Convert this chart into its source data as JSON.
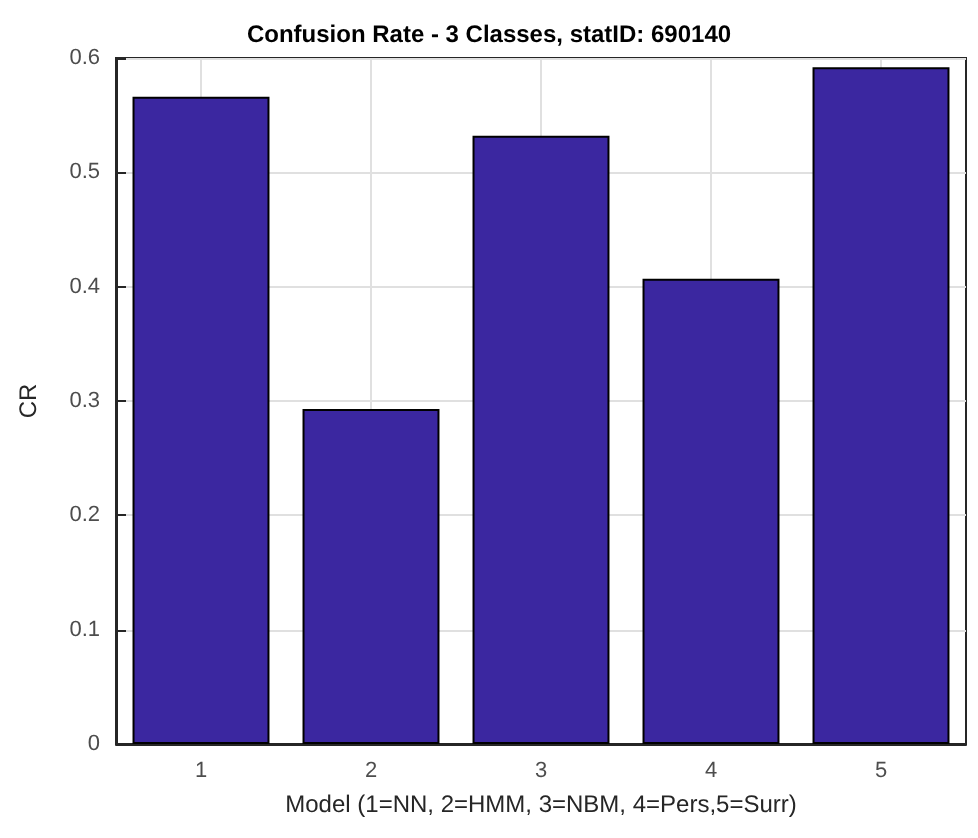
{
  "chart_data": {
    "type": "bar",
    "title": "Confusion Rate - 3 Classes, statID: 690140",
    "xlabel": "Model (1=NN, 2=HMM, 3=NBM, 4=Pers,5=Surr)",
    "ylabel": "CR",
    "x": [
      1,
      2,
      3,
      4,
      5
    ],
    "xlim": [
      0.5,
      5.5
    ],
    "xticks": [
      1,
      2,
      3,
      4,
      5
    ],
    "values": [
      0.566,
      0.293,
      0.532,
      0.407,
      0.592
    ],
    "color": "#3b27a0",
    "ylim": [
      0,
      0.6
    ],
    "yticks": [
      0,
      0.1,
      0.2,
      0.3,
      0.4,
      0.5,
      0.6
    ],
    "grid": true
  }
}
